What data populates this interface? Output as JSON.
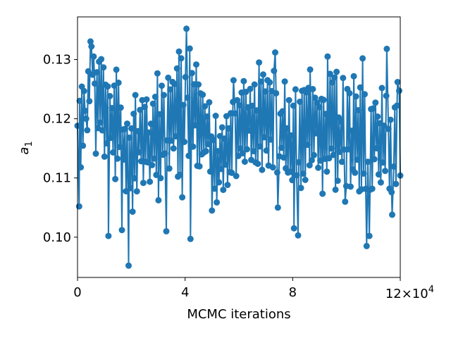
{
  "chart_data": {
    "type": "line",
    "xlabel": "MCMC iterations",
    "ylabel_symbol": "a",
    "ylabel_subscript": "1",
    "x_multiplier_base": "12",
    "x_multiplier_text": "×10",
    "x_multiplier_exponent": "4",
    "xlim": [
      0,
      120000
    ],
    "ylim": [
      0.0932,
      0.1372
    ],
    "xticks": [
      0,
      40000,
      80000,
      120000
    ],
    "xtick_labels": [
      "0",
      "4",
      "8",
      ""
    ],
    "yticks": [
      0.1,
      0.11,
      0.12,
      0.13
    ],
    "ytick_labels": [
      "0.10",
      "0.11",
      "0.12",
      "0.13"
    ],
    "grid": false,
    "legend": "none",
    "color": "#1f77b4",
    "marker": "circle",
    "series": [
      {
        "x": [
          0,
          4000,
          8000,
          12000,
          16000,
          20000,
          24000,
          28000,
          32000,
          36000,
          40000,
          44000,
          48000,
          52000,
          56000,
          60000,
          64000,
          68000,
          72000,
          76000,
          80000,
          84000,
          88000,
          92000,
          96000,
          100000,
          104000,
          108000,
          112000,
          116000,
          120000
        ],
        "values": [
          0.1165,
          0.1255,
          0.123,
          0.1195,
          0.1178,
          0.1115,
          0.117,
          0.1158,
          0.1182,
          0.119,
          0.12,
          0.1205,
          0.1175,
          0.112,
          0.115,
          0.1175,
          0.1185,
          0.119,
          0.1195,
          0.1185,
          0.116,
          0.1185,
          0.1185,
          0.118,
          0.1175,
          0.117,
          0.117,
          0.1175,
          0.116,
          0.1165,
          0.1165
        ],
        "spread": [
          0.006,
          0.009,
          0.0095,
          0.009,
          0.009,
          0.008,
          0.0085,
          0.009,
          0.01,
          0.01,
          0.011,
          0.0105,
          0.009,
          0.006,
          0.006,
          0.0075,
          0.008,
          0.0085,
          0.0085,
          0.0085,
          0.0085,
          0.009,
          0.009,
          0.0095,
          0.0095,
          0.009,
          0.009,
          0.009,
          0.009,
          0.009,
          0.008
        ],
        "extremes": [
          {
            "x": 600,
            "y": 0.1052
          },
          {
            "x": 3200,
            "y": 0.12
          },
          {
            "x": 5200,
            "y": 0.1322
          },
          {
            "x": 6000,
            "y": 0.1305
          },
          {
            "x": 11500,
            "y": 0.1002
          },
          {
            "x": 16500,
            "y": 0.1012
          },
          {
            "x": 19000,
            "y": 0.0952
          },
          {
            "x": 21500,
            "y": 0.124
          },
          {
            "x": 25000,
            "y": 0.122
          },
          {
            "x": 33000,
            "y": 0.101
          },
          {
            "x": 37000,
            "y": 0.1285
          },
          {
            "x": 40500,
            "y": 0.1352
          },
          {
            "x": 42000,
            "y": 0.0997
          },
          {
            "x": 50000,
            "y": 0.1045
          },
          {
            "x": 58000,
            "y": 0.1265
          },
          {
            "x": 67500,
            "y": 0.1295
          },
          {
            "x": 73500,
            "y": 0.1312
          },
          {
            "x": 74500,
            "y": 0.105
          },
          {
            "x": 80500,
            "y": 0.1015
          },
          {
            "x": 82000,
            "y": 0.1003
          },
          {
            "x": 86500,
            "y": 0.1283
          },
          {
            "x": 93000,
            "y": 0.1305
          },
          {
            "x": 99500,
            "y": 0.106
          },
          {
            "x": 106000,
            "y": 0.1302
          },
          {
            "x": 107500,
            "y": 0.0985
          },
          {
            "x": 108500,
            "y": 0.1002
          },
          {
            "x": 115000,
            "y": 0.1318
          },
          {
            "x": 117000,
            "y": 0.1038
          },
          {
            "x": 119000,
            "y": 0.1262
          }
        ]
      }
    ]
  }
}
